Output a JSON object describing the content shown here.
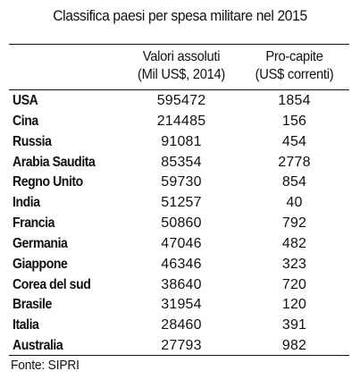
{
  "title": "Classifica paesi per spesa militare nel 2015",
  "headers": {
    "absolute_line1": "Valori assoluti",
    "absolute_line2": "(Mil US$, 2014)",
    "percapita_line1": "Pro-capite",
    "percapita_line2": "(US$ correnti)"
  },
  "rows": [
    {
      "country": "USA",
      "absolute": "595472",
      "per_capita": "1854"
    },
    {
      "country": "Cina",
      "absolute": "214485",
      "per_capita": "156"
    },
    {
      "country": "Russia",
      "absolute": "91081",
      "per_capita": "454"
    },
    {
      "country": "Arabia Saudita",
      "absolute": "85354",
      "per_capita": "2778"
    },
    {
      "country": "Regno Unito",
      "absolute": "59730",
      "per_capita": "854"
    },
    {
      "country": "India",
      "absolute": "51257",
      "per_capita": "40"
    },
    {
      "country": "Francia",
      "absolute": "50860",
      "per_capita": "792"
    },
    {
      "country": "Germania",
      "absolute": "47046",
      "per_capita": "482"
    },
    {
      "country": "Giappone",
      "absolute": "46346",
      "per_capita": "323"
    },
    {
      "country": "Corea del sud",
      "absolute": "38640",
      "per_capita": "720"
    },
    {
      "country": "Brasile",
      "absolute": "31954",
      "per_capita": "120"
    },
    {
      "country": "Italia",
      "absolute": "28460",
      "per_capita": "391"
    },
    {
      "country": "Australia",
      "absolute": "27793",
      "per_capita": "982"
    }
  ],
  "source": "Fonte: SIPRI"
}
